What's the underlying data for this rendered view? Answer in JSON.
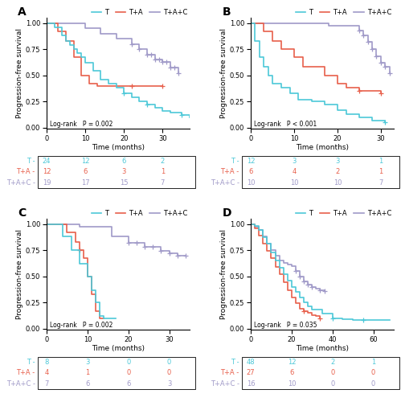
{
  "chart_data": [
    {
      "type": "step",
      "title": "A",
      "x_label": "Time (months)",
      "y_label": "Progression-free survival",
      "annotation": "Log-rank   P = 0.002",
      "legend": "upper right",
      "xlim": [
        0,
        37
      ],
      "xticks": [
        0,
        10,
        20,
        30
      ],
      "ylim": [
        -0.01,
        1.05
      ],
      "yticks": [
        {
          "value": 0.0,
          "label": "0.00"
        },
        {
          "value": 0.25,
          "label": "0.25"
        },
        {
          "value": 0.5,
          "label": "0.50"
        },
        {
          "value": 0.75,
          "label": "0.75"
        },
        {
          "value": 1.0,
          "label": "1.00"
        }
      ],
      "series": [
        {
          "name": "T",
          "color": "#4DC8D8",
          "x": [
            0,
            2,
            4,
            5,
            6,
            7,
            8,
            9,
            10,
            12,
            14,
            16,
            18,
            20,
            22,
            24,
            26,
            28,
            30,
            32,
            35,
            37
          ],
          "values": [
            1.0,
            0.96,
            0.88,
            0.83,
            0.79,
            0.75,
            0.71,
            0.67,
            0.62,
            0.54,
            0.46,
            0.42,
            0.38,
            0.33,
            0.29,
            0.25,
            0.22,
            0.19,
            0.16,
            0.14,
            0.12,
            0.1
          ],
          "censor_x": [
            20,
            26,
            35
          ],
          "censor_y": [
            0.33,
            0.22,
            0.12
          ]
        },
        {
          "name": "T+A",
          "color": "#E8604C",
          "x": [
            0,
            3,
            5,
            7,
            9,
            11,
            13,
            22,
            30
          ],
          "values": [
            1.0,
            0.92,
            0.83,
            0.67,
            0.5,
            0.42,
            0.4,
            0.4,
            0.4
          ],
          "censor_x": [
            22,
            30
          ],
          "censor_y": [
            0.4,
            0.4
          ]
        },
        {
          "name": "T+A+C",
          "color": "#A09AC8",
          "x": [
            0,
            10,
            14,
            18,
            22,
            24,
            26,
            28,
            30,
            32,
            34
          ],
          "values": [
            1.0,
            0.95,
            0.9,
            0.85,
            0.8,
            0.75,
            0.7,
            0.65,
            0.63,
            0.57,
            0.52
          ],
          "censor_x": [
            22,
            24,
            26,
            27,
            28,
            29,
            30,
            31,
            32,
            33,
            34
          ],
          "censor_y": [
            0.8,
            0.75,
            0.7,
            0.7,
            0.65,
            0.65,
            0.63,
            0.63,
            0.57,
            0.57,
            0.52
          ]
        }
      ],
      "risk_table": {
        "x": [
          0,
          10,
          20,
          30
        ],
        "rows": [
          {
            "name": "T -",
            "color": "#4DC8D8",
            "values": [
              24,
              12,
              6,
              2
            ]
          },
          {
            "name": "T+A -",
            "color": "#E8604C",
            "values": [
              12,
              6,
              3,
              1
            ]
          },
          {
            "name": "T+A+C -",
            "color": "#A09AC8",
            "values": [
              19,
              17,
              15,
              7
            ]
          }
        ]
      }
    },
    {
      "type": "step",
      "title": "B",
      "x_label": "Time (months)",
      "y_label": "Progression-free survival",
      "annotation": "Log-rank   P < 0.001",
      "legend": "upper right",
      "xlim": [
        0,
        33
      ],
      "xticks": [
        0,
        10,
        20,
        30
      ],
      "ylim": [
        -0.01,
        1.05
      ],
      "yticks": [
        {
          "value": 0.0,
          "label": "0.00"
        },
        {
          "value": 0.25,
          "label": "0.25"
        },
        {
          "value": 0.5,
          "label": "0.50"
        },
        {
          "value": 0.75,
          "label": "0.75"
        },
        {
          "value": 1.0,
          "label": "1.00"
        }
      ],
      "series": [
        {
          "name": "T",
          "color": "#4DC8D8",
          "x": [
            0,
            1,
            2,
            3,
            4,
            5,
            7,
            9,
            11,
            14,
            17,
            20,
            22,
            25,
            28,
            31
          ],
          "values": [
            1.0,
            0.83,
            0.67,
            0.58,
            0.5,
            0.42,
            0.38,
            0.33,
            0.27,
            0.25,
            0.22,
            0.17,
            0.13,
            0.1,
            0.07,
            0.05
          ],
          "censor_x": [
            31
          ],
          "censor_y": [
            0.05
          ]
        },
        {
          "name": "T+A",
          "color": "#E8604C",
          "x": [
            0,
            3,
            5,
            7,
            10,
            12,
            17,
            20,
            22,
            25,
            30
          ],
          "values": [
            1.0,
            0.92,
            0.83,
            0.75,
            0.67,
            0.58,
            0.5,
            0.42,
            0.38,
            0.35,
            0.33
          ],
          "censor_x": [
            25,
            30
          ],
          "censor_y": [
            0.35,
            0.33
          ]
        },
        {
          "name": "T+A+C",
          "color": "#A09AC8",
          "x": [
            0,
            18,
            25,
            26,
            27,
            28,
            29,
            30,
            31,
            32
          ],
          "values": [
            1.0,
            0.97,
            0.93,
            0.88,
            0.82,
            0.75,
            0.68,
            0.62,
            0.58,
            0.52
          ],
          "censor_x": [
            25,
            26,
            27,
            28,
            29,
            30,
            31,
            32
          ],
          "censor_y": [
            0.93,
            0.88,
            0.82,
            0.75,
            0.68,
            0.62,
            0.58,
            0.52
          ]
        }
      ],
      "risk_table": {
        "x": [
          0,
          10,
          20,
          30
        ],
        "rows": [
          {
            "name": "T -",
            "color": "#4DC8D8",
            "values": [
              12,
              3,
              3,
              1
            ]
          },
          {
            "name": "T+A -",
            "color": "#E8604C",
            "values": [
              6,
              4,
              2,
              1
            ]
          },
          {
            "name": "T+A+C -",
            "color": "#A09AC8",
            "values": [
              10,
              10,
              10,
              7
            ]
          }
        ]
      }
    },
    {
      "type": "step",
      "title": "C",
      "x_label": "Time (months)",
      "y_label": "Progression-free survival",
      "annotation": "Log-rank   P = 0.002",
      "legend": "upper right",
      "xlim": [
        0,
        35
      ],
      "xticks": [
        0,
        10,
        20,
        30
      ],
      "ylim": [
        -0.01,
        1.05
      ],
      "yticks": [
        {
          "value": 0.0,
          "label": "0.00"
        },
        {
          "value": 0.25,
          "label": "0.25"
        },
        {
          "value": 0.5,
          "label": "0.50"
        },
        {
          "value": 0.75,
          "label": "0.75"
        },
        {
          "value": 1.0,
          "label": "1.00"
        }
      ],
      "series": [
        {
          "name": "T",
          "color": "#4DC8D8",
          "x": [
            0,
            4,
            6,
            8,
            10,
            11,
            12,
            13,
            14,
            16,
            17
          ],
          "values": [
            1.0,
            0.88,
            0.75,
            0.62,
            0.5,
            0.37,
            0.25,
            0.12,
            0.1,
            0.1,
            0.1
          ],
          "censor_x": [],
          "censor_y": []
        },
        {
          "name": "T+A",
          "color": "#E8604C",
          "x": [
            0,
            5,
            7,
            8,
            9,
            10,
            11,
            12,
            13,
            14
          ],
          "values": [
            1.0,
            0.92,
            0.83,
            0.75,
            0.67,
            0.5,
            0.33,
            0.17,
            0.1,
            0.1
          ],
          "censor_x": [
            8
          ],
          "censor_y": [
            0.75
          ]
        },
        {
          "name": "T+A+C",
          "color": "#A09AC8",
          "x": [
            0,
            8,
            16,
            20,
            24,
            28,
            30,
            32,
            34
          ],
          "values": [
            1.0,
            0.97,
            0.88,
            0.82,
            0.78,
            0.74,
            0.72,
            0.7,
            0.7
          ],
          "censor_x": [
            20,
            22,
            24,
            26,
            28,
            30,
            32,
            34
          ],
          "censor_y": [
            0.82,
            0.82,
            0.78,
            0.78,
            0.74,
            0.72,
            0.7,
            0.7
          ]
        }
      ],
      "risk_table": {
        "x": [
          0,
          10,
          20,
          30
        ],
        "rows": [
          {
            "name": "T -",
            "color": "#4DC8D8",
            "values": [
              8,
              3,
              0,
              0
            ]
          },
          {
            "name": "T+A -",
            "color": "#E8604C",
            "values": [
              4,
              1,
              0,
              0
            ]
          },
          {
            "name": "T+A+C -",
            "color": "#A09AC8",
            "values": [
              7,
              6,
              6,
              3
            ]
          }
        ]
      }
    },
    {
      "type": "step",
      "title": "D",
      "x_label": "Time (months)",
      "y_label": "Progression-free survival",
      "annotation": "Log-rank   P = 0.035",
      "legend": "upper right",
      "xlim": [
        0,
        70
      ],
      "xticks": [
        0,
        20,
        40,
        60
      ],
      "ylim": [
        -0.01,
        1.05
      ],
      "yticks": [
        {
          "value": 0.0,
          "label": "0.00"
        },
        {
          "value": 0.25,
          "label": "0.25"
        },
        {
          "value": 0.5,
          "label": "0.50"
        },
        {
          "value": 0.75,
          "label": "0.75"
        },
        {
          "value": 1.0,
          "label": "1.00"
        }
      ],
      "series": [
        {
          "name": "T",
          "color": "#4DC8D8",
          "x": [
            0,
            2,
            4,
            6,
            8,
            10,
            12,
            14,
            16,
            18,
            20,
            22,
            24,
            26,
            28,
            30,
            35,
            40,
            45,
            50,
            55,
            60,
            65,
            68
          ],
          "values": [
            1.0,
            0.98,
            0.94,
            0.87,
            0.81,
            0.73,
            0.65,
            0.58,
            0.52,
            0.46,
            0.4,
            0.35,
            0.3,
            0.25,
            0.21,
            0.18,
            0.14,
            0.1,
            0.09,
            0.08,
            0.08,
            0.08,
            0.08,
            0.08
          ],
          "censor_x": [
            40,
            55
          ],
          "censor_y": [
            0.1,
            0.08
          ]
        },
        {
          "name": "T+A",
          "color": "#E8604C",
          "x": [
            0,
            2,
            4,
            6,
            8,
            10,
            12,
            14,
            16,
            18,
            20,
            22,
            24,
            26,
            28,
            30,
            32,
            34
          ],
          "values": [
            1.0,
            0.96,
            0.89,
            0.81,
            0.74,
            0.67,
            0.59,
            0.52,
            0.44,
            0.37,
            0.3,
            0.24,
            0.19,
            0.17,
            0.15,
            0.13,
            0.12,
            0.1
          ],
          "censor_x": [
            26,
            34
          ],
          "censor_y": [
            0.17,
            0.1
          ]
        },
        {
          "name": "T+A+C",
          "color": "#A09AC8",
          "x": [
            0,
            2,
            4,
            6,
            8,
            10,
            12,
            14,
            16,
            18,
            20,
            22,
            24,
            26,
            28,
            30,
            32,
            34,
            36
          ],
          "values": [
            1.0,
            0.97,
            0.94,
            0.88,
            0.81,
            0.75,
            0.7,
            0.65,
            0.63,
            0.61,
            0.6,
            0.55,
            0.5,
            0.45,
            0.42,
            0.4,
            0.38,
            0.37,
            0.36
          ],
          "censor_x": [
            22,
            24,
            26,
            28,
            30,
            34,
            36
          ],
          "censor_y": [
            0.55,
            0.5,
            0.45,
            0.42,
            0.4,
            0.37,
            0.36
          ]
        }
      ],
      "risk_table": {
        "x": [
          0,
          20,
          40,
          60
        ],
        "rows": [
          {
            "name": "T -",
            "color": "#4DC8D8",
            "values": [
              48,
              12,
              2,
              1
            ]
          },
          {
            "name": "T+A -",
            "color": "#E8604C",
            "values": [
              27,
              6,
              0,
              0
            ]
          },
          {
            "name": "T+A+C -",
            "color": "#A09AC8",
            "values": [
              16,
              10,
              0,
              0
            ]
          }
        ]
      }
    }
  ]
}
